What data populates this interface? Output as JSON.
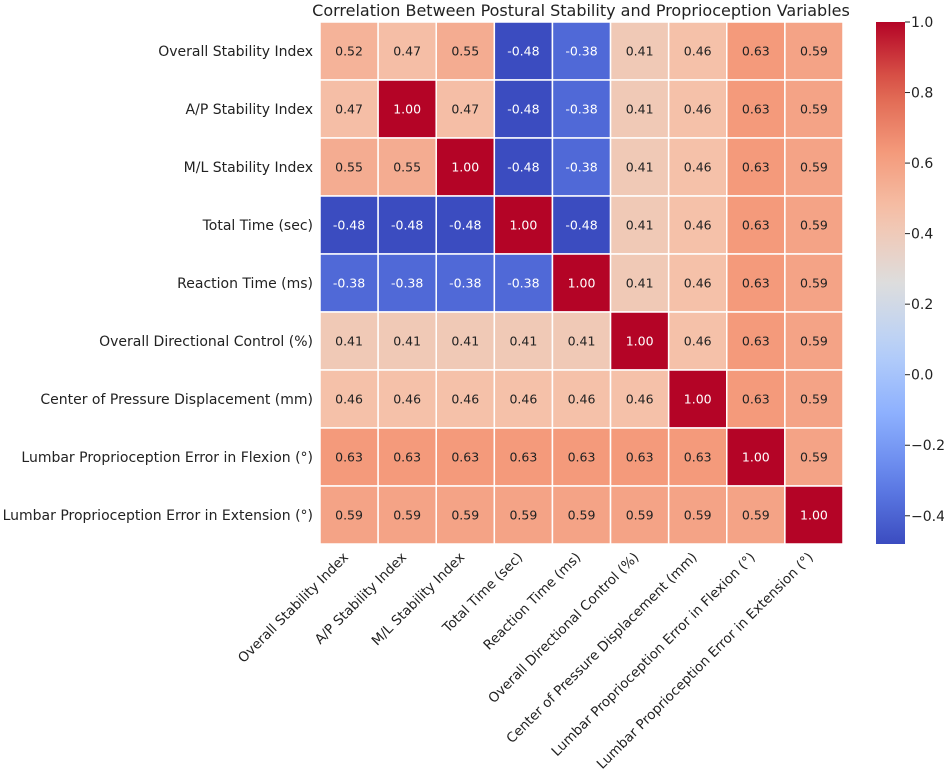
{
  "chart_data": {
    "type": "heatmap",
    "title": "Correlation Between Postural Stability and Proprioception Variables",
    "xlabel": "",
    "ylabel": "",
    "row_labels": [
      "Overall Stability Index",
      "A/P Stability Index",
      "M/L Stability Index",
      "Total Time (sec)",
      "Reaction Time (ms)",
      "Overall Directional Control (%)",
      "Center of Pressure Displacement (mm)",
      "Lumbar Proprioception Error in Flexion (°)",
      "Lumbar Proprioception Error in Extension (°)"
    ],
    "col_labels": [
      "Overall Stability Index",
      "A/P Stability Index",
      "M/L Stability Index",
      "Total Time (sec)",
      "Reaction Time (ms)",
      "Overall Directional Control (%)",
      "Center of Pressure Displacement (mm)",
      "Lumbar Proprioception Error in Flexion (°)",
      "Lumbar Proprioception Error in Extension (°)"
    ],
    "values": [
      [
        0.52,
        0.47,
        0.55,
        -0.48,
        -0.38,
        0.41,
        0.46,
        0.63,
        0.59
      ],
      [
        0.47,
        1.0,
        0.47,
        -0.48,
        -0.38,
        0.41,
        0.46,
        0.63,
        0.59
      ],
      [
        0.55,
        0.55,
        1.0,
        -0.48,
        -0.38,
        0.41,
        0.46,
        0.63,
        0.59
      ],
      [
        -0.48,
        -0.48,
        -0.48,
        1.0,
        -0.48,
        0.41,
        0.46,
        0.63,
        0.59
      ],
      [
        -0.38,
        -0.38,
        -0.38,
        -0.38,
        1.0,
        0.41,
        0.46,
        0.63,
        0.59
      ],
      [
        0.41,
        0.41,
        0.41,
        0.41,
        0.41,
        1.0,
        0.46,
        0.63,
        0.59
      ],
      [
        0.46,
        0.46,
        0.46,
        0.46,
        0.46,
        0.46,
        1.0,
        0.63,
        0.59
      ],
      [
        0.63,
        0.63,
        0.63,
        0.63,
        0.63,
        0.63,
        0.63,
        1.0,
        0.59
      ],
      [
        0.59,
        0.59,
        0.59,
        0.59,
        0.59,
        0.59,
        0.59,
        0.59,
        1.0
      ]
    ],
    "colormap": "coolwarm",
    "vmin": -0.48,
    "vmax": 1.0,
    "colorbar_ticks": [
      1.0,
      0.8,
      0.6,
      0.4,
      0.2,
      0.0,
      -0.2,
      -0.4
    ],
    "colorbar_tick_labels": [
      "1.0",
      "0.8",
      "0.6",
      "0.4",
      "0.2",
      "0.0",
      "−0.2",
      "−0.4"
    ],
    "annotation_format": "2 decimals",
    "grid": "white cell borders"
  }
}
